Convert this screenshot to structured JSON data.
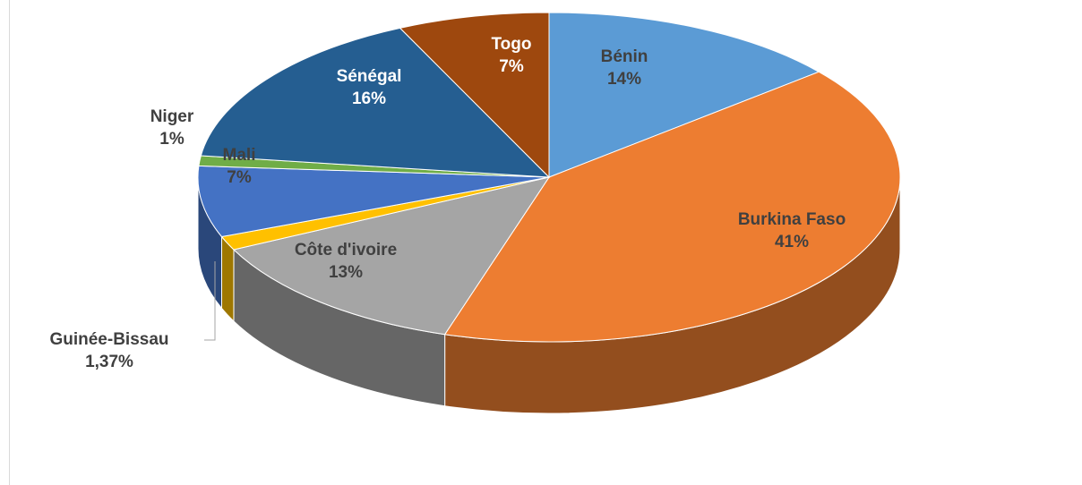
{
  "chart_data": {
    "type": "pie",
    "categories": [
      "Bénin",
      "Burkina Faso",
      "Côte d'ivoire",
      "Guinée-Bissau",
      "Mali",
      "Niger",
      "Sénégal",
      "Togo"
    ],
    "values": [
      14,
      41,
      13,
      1.37,
      7,
      1,
      16,
      7
    ],
    "value_labels": [
      "14%",
      "41%",
      "13%",
      "1,37%",
      "7%",
      "1%",
      "16%",
      "7%"
    ],
    "colors": [
      "#5b9bd5",
      "#ed7d31",
      "#a5a5a5",
      "#ffc000",
      "#4472c4",
      "#70ad47",
      "#255e91",
      "#9e480e"
    ]
  }
}
